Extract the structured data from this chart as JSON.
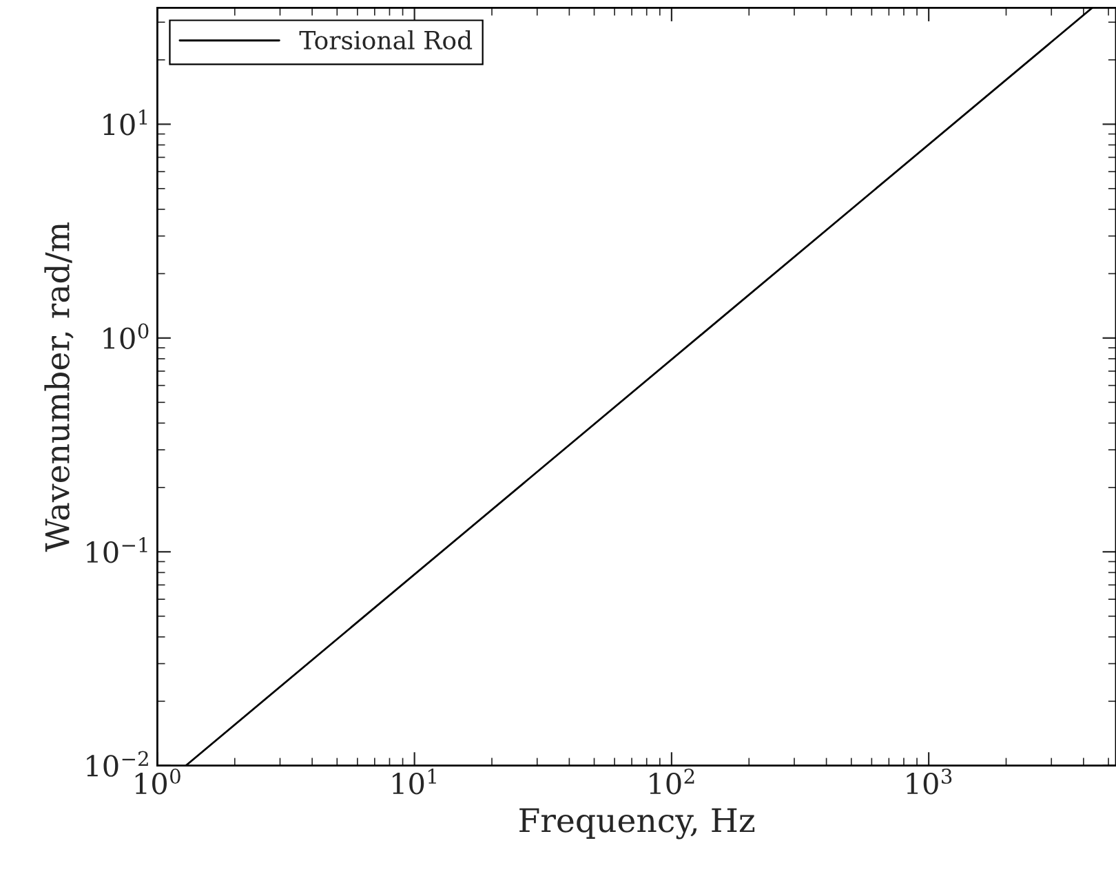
{
  "chart_data": {
    "type": "line",
    "xlabel": "Frequency, Hz",
    "ylabel": "Wavenumber, rad/m",
    "series": [
      {
        "name": "Torsional Rod",
        "color": "#000000",
        "x": [
          1.29,
          4320
        ],
        "values": [
          0.01,
          35
        ]
      }
    ],
    "log": "xy",
    "xlim": [
      1,
      5350
    ],
    "ylim": [
      0.01,
      35
    ],
    "xticks": [
      {
        "value": 1,
        "label": "10$^{0}$"
      },
      {
        "value": 10,
        "label": "10$^{1}$"
      },
      {
        "value": 100,
        "label": "10$^{2}$"
      },
      {
        "value": 1000,
        "label": "10$^{3}$"
      }
    ],
    "yticks": [
      {
        "value": 0.01,
        "label": "10$^{−2}$"
      },
      {
        "value": 0.1,
        "label": "10$^{−1}$"
      },
      {
        "value": 1,
        "label": "10$^{0}$"
      },
      {
        "value": 10,
        "label": "10$^{1}$"
      }
    ],
    "grid": false,
    "legend": "top left",
    "line_style": "solid",
    "marker": "none"
  }
}
